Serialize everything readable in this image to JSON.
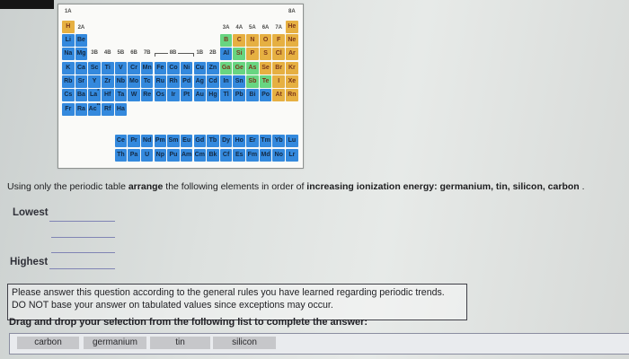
{
  "periodic_table": {
    "category_colors": {
      "m": "#3489dd",
      "md": "#68d581",
      "nm": "#e6b042"
    },
    "labels_top": [
      [
        "1A",
        1
      ],
      [
        "8A",
        18
      ]
    ],
    "labels_row1": [
      [
        "2A",
        2
      ],
      [
        "3A",
        13
      ],
      [
        "4A",
        14
      ],
      [
        "5A",
        15
      ],
      [
        "6A",
        16
      ],
      [
        "7A",
        17
      ]
    ],
    "labels_row3": [
      [
        "3B",
        3
      ],
      [
        "4B",
        4
      ],
      [
        "5B",
        5
      ],
      [
        "6B",
        6
      ],
      [
        "7B",
        7
      ],
      [
        "1B",
        11
      ],
      [
        "2B",
        12
      ]
    ],
    "bracket": {
      "label": "8B",
      "from": 8,
      "to": 10
    },
    "rows": [
      {
        "row": 1,
        "cells": [
          [
            "H",
            1,
            "nm"
          ],
          [
            "He",
            18,
            "nm"
          ]
        ]
      },
      {
        "row": 2,
        "cells": [
          [
            "Li",
            1,
            "m"
          ],
          [
            "Be",
            2,
            "m"
          ],
          [
            "B",
            13,
            "md"
          ],
          [
            "C",
            14,
            "nm"
          ],
          [
            "N",
            15,
            "nm"
          ],
          [
            "O",
            16,
            "nm"
          ],
          [
            "F",
            17,
            "nm"
          ],
          [
            "Ne",
            18,
            "nm"
          ]
        ]
      },
      {
        "row": 3,
        "cells": [
          [
            "Na",
            1,
            "m"
          ],
          [
            "Mg",
            2,
            "m"
          ],
          [
            "Al",
            13,
            "m"
          ],
          [
            "Si",
            14,
            "md"
          ],
          [
            "P",
            15,
            "nm"
          ],
          [
            "S",
            16,
            "nm"
          ],
          [
            "Cl",
            17,
            "nm"
          ],
          [
            "Ar",
            18,
            "nm"
          ]
        ]
      },
      {
        "row": 4,
        "cells": [
          [
            "K",
            1,
            "m"
          ],
          [
            "Ca",
            2,
            "m"
          ],
          [
            "Sc",
            3,
            "m"
          ],
          [
            "Ti",
            4,
            "m"
          ],
          [
            "V",
            5,
            "m"
          ],
          [
            "Cr",
            6,
            "m"
          ],
          [
            "Mn",
            7,
            "m"
          ],
          [
            "Fe",
            8,
            "m"
          ],
          [
            "Co",
            9,
            "m"
          ],
          [
            "Ni",
            10,
            "m"
          ],
          [
            "Cu",
            11,
            "m"
          ],
          [
            "Zn",
            12,
            "m"
          ],
          [
            "Ga",
            13,
            "md"
          ],
          [
            "Ge",
            14,
            "md"
          ],
          [
            "As",
            15,
            "md"
          ],
          [
            "Se",
            16,
            "nm"
          ],
          [
            "Br",
            17,
            "nm"
          ],
          [
            "Kr",
            18,
            "nm"
          ]
        ]
      },
      {
        "row": 5,
        "cells": [
          [
            "Rb",
            1,
            "m"
          ],
          [
            "Sr",
            2,
            "m"
          ],
          [
            "Y",
            3,
            "m"
          ],
          [
            "Zr",
            4,
            "m"
          ],
          [
            "Nb",
            5,
            "m"
          ],
          [
            "Mo",
            6,
            "m"
          ],
          [
            "Tc",
            7,
            "m"
          ],
          [
            "Ru",
            8,
            "m"
          ],
          [
            "Rh",
            9,
            "m"
          ],
          [
            "Pd",
            10,
            "m"
          ],
          [
            "Ag",
            11,
            "m"
          ],
          [
            "Cd",
            12,
            "m"
          ],
          [
            "In",
            13,
            "m"
          ],
          [
            "Sn",
            14,
            "m"
          ],
          [
            "Sb",
            15,
            "md"
          ],
          [
            "Te",
            16,
            "md"
          ],
          [
            "I",
            17,
            "nm"
          ],
          [
            "Xe",
            18,
            "nm"
          ]
        ]
      },
      {
        "row": 6,
        "cells": [
          [
            "Cs",
            1,
            "m"
          ],
          [
            "Ba",
            2,
            "m"
          ],
          [
            "La",
            3,
            "m",
            "*"
          ],
          [
            "Hf",
            4,
            "m"
          ],
          [
            "Ta",
            5,
            "m"
          ],
          [
            "W",
            6,
            "m"
          ],
          [
            "Re",
            7,
            "m"
          ],
          [
            "Os",
            8,
            "m"
          ],
          [
            "Ir",
            9,
            "m"
          ],
          [
            "Pt",
            10,
            "m"
          ],
          [
            "Au",
            11,
            "m"
          ],
          [
            "Hg",
            12,
            "m"
          ],
          [
            "Tl",
            13,
            "m"
          ],
          [
            "Pb",
            14,
            "m"
          ],
          [
            "Bi",
            15,
            "m"
          ],
          [
            "Po",
            16,
            "m"
          ],
          [
            "At",
            17,
            "nm"
          ],
          [
            "Rn",
            18,
            "nm"
          ]
        ]
      },
      {
        "row": 7,
        "cells": [
          [
            "Fr",
            1,
            "m"
          ],
          [
            "Ra",
            2,
            "m"
          ],
          [
            "Ac",
            3,
            "m",
            "**"
          ],
          [
            "Rf",
            4,
            "m"
          ],
          [
            "Ha",
            5,
            "m"
          ]
        ]
      },
      {
        "row": 8,
        "cells": [
          [
            "Ce",
            5,
            "m"
          ],
          [
            "Pr",
            6,
            "m"
          ],
          [
            "Nd",
            7,
            "m"
          ],
          [
            "Pm",
            8,
            "m"
          ],
          [
            "Sm",
            9,
            "m"
          ],
          [
            "Eu",
            10,
            "m"
          ],
          [
            "Gd",
            11,
            "m"
          ],
          [
            "Tb",
            12,
            "m"
          ],
          [
            "Dy",
            13,
            "m"
          ],
          [
            "Ho",
            14,
            "m"
          ],
          [
            "Er",
            15,
            "m"
          ],
          [
            "Tm",
            16,
            "m"
          ],
          [
            "Yb",
            17,
            "m"
          ],
          [
            "Lu",
            18,
            "m"
          ]
        ]
      },
      {
        "row": 9,
        "cells": [
          [
            "Th",
            5,
            "m"
          ],
          [
            "Pa",
            6,
            "m"
          ],
          [
            "U",
            7,
            "m"
          ],
          [
            "Np",
            8,
            "m"
          ],
          [
            "Pu",
            9,
            "m"
          ],
          [
            "Am",
            10,
            "m"
          ],
          [
            "Cm",
            11,
            "m"
          ],
          [
            "Bk",
            12,
            "m"
          ],
          [
            "Cf",
            13,
            "m"
          ],
          [
            "Es",
            14,
            "m"
          ],
          [
            "Fm",
            15,
            "m"
          ],
          [
            "Md",
            16,
            "m"
          ],
          [
            "No",
            17,
            "m"
          ],
          [
            "Lr",
            18,
            "m"
          ]
        ]
      }
    ]
  },
  "question": {
    "segments": [
      {
        "text": "Using only the periodic table ",
        "bold": false
      },
      {
        "text": "arrange",
        "bold": true
      },
      {
        "text": " the following elements in order of ",
        "bold": false
      },
      {
        "text": "increasing ionization energy:",
        "bold": true
      },
      {
        "text": " ",
        "bold": false
      },
      {
        "text": "germanium, tin, silicon, carbon",
        "bold": true
      },
      {
        "text": " .",
        "bold": false
      }
    ]
  },
  "ordering": {
    "lowest_label": "Lowest",
    "highest_label": "Highest",
    "blank_count": 4
  },
  "note": {
    "line1": "Please answer this question according to the general rules you have learned regarding periodic trends.",
    "line2": "DO NOT base your answer on tabulated values since exceptions may occur."
  },
  "drag_instruction": "Drag and drop your selection from the following list to complete the answer:",
  "choices": [
    "carbon",
    "germanium",
    "tin",
    "silicon"
  ]
}
